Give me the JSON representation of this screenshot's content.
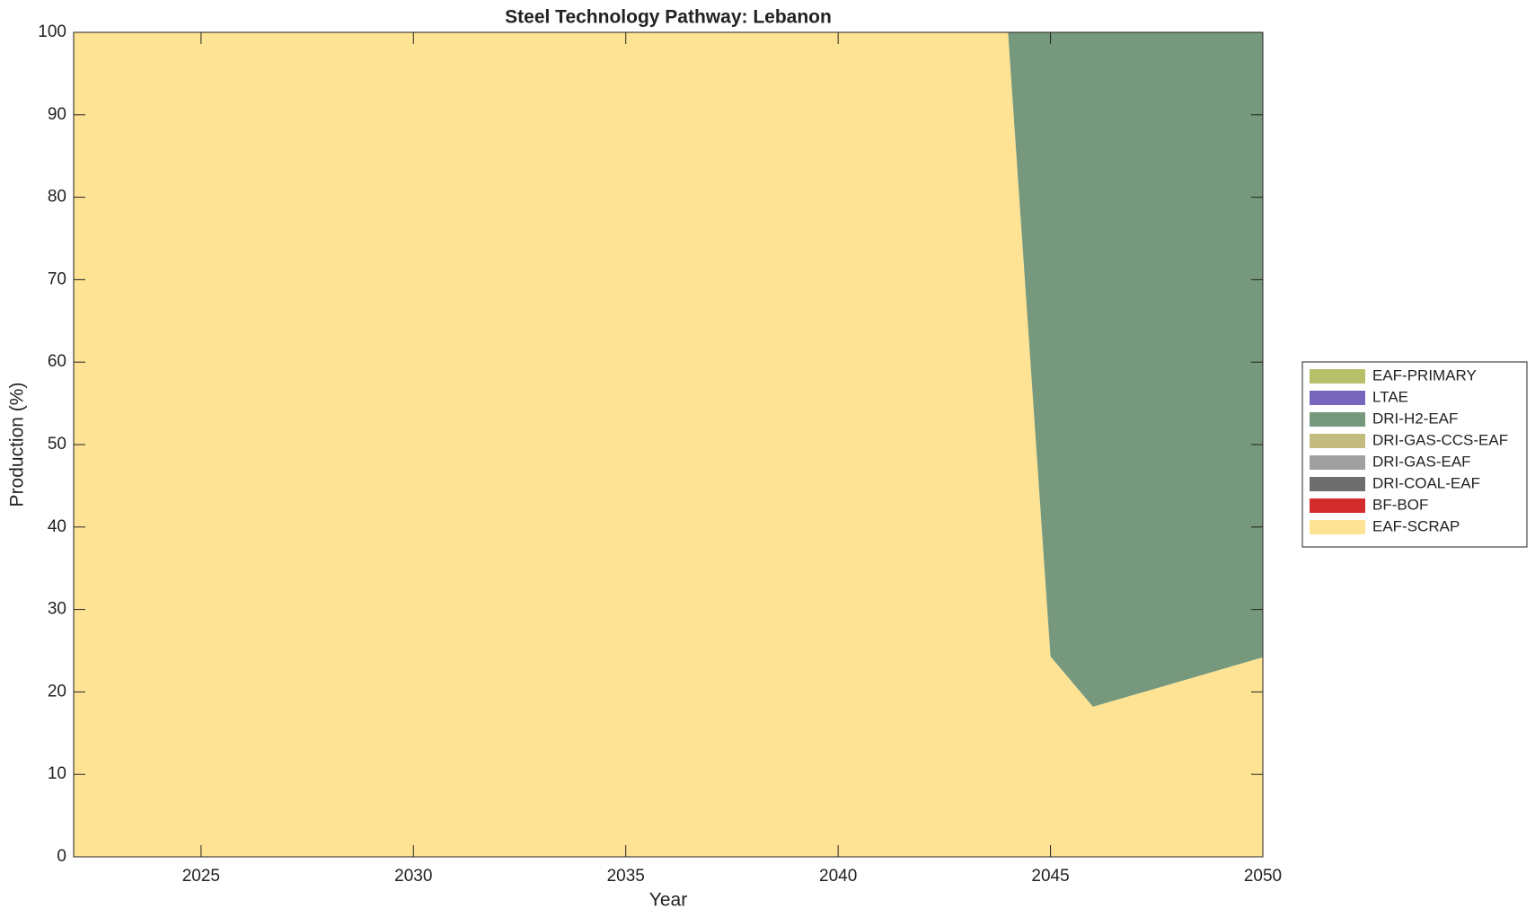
{
  "chart_data": {
    "type": "stacked-area",
    "title": "Steel Technology Pathway: Lebanon",
    "x_label": "Year",
    "y_label": "Production (%)",
    "x": [
      2022,
      2023,
      2024,
      2025,
      2026,
      2027,
      2028,
      2029,
      2030,
      2031,
      2032,
      2033,
      2034,
      2035,
      2036,
      2037,
      2038,
      2039,
      2040,
      2041,
      2042,
      2043,
      2044,
      2045,
      2046,
      2047,
      2048,
      2049,
      2050
    ],
    "series": [
      {
        "name": "EAF-SCRAP",
        "color": "#fee394",
        "values": [
          100,
          100,
          100,
          100,
          100,
          100,
          100,
          100,
          100,
          100,
          100,
          100,
          100,
          100,
          100,
          100,
          100,
          100,
          100,
          100,
          100,
          100,
          100,
          24.3,
          18.2,
          19.7,
          21.2,
          22.7,
          24.2
        ]
      },
      {
        "name": "BF-BOF",
        "color": "#d42c2c",
        "values": [
          0,
          0,
          0,
          0,
          0,
          0,
          0,
          0,
          0,
          0,
          0,
          0,
          0,
          0,
          0,
          0,
          0,
          0,
          0,
          0,
          0,
          0,
          0,
          0,
          0,
          0,
          0,
          0,
          0
        ]
      },
      {
        "name": "DRI-COAL-EAF",
        "color": "#6e6e6e",
        "values": [
          0,
          0,
          0,
          0,
          0,
          0,
          0,
          0,
          0,
          0,
          0,
          0,
          0,
          0,
          0,
          0,
          0,
          0,
          0,
          0,
          0,
          0,
          0,
          0,
          0,
          0,
          0,
          0,
          0
        ]
      },
      {
        "name": "DRI-GAS-EAF",
        "color": "#a0a0a0",
        "values": [
          0,
          0,
          0,
          0,
          0,
          0,
          0,
          0,
          0,
          0,
          0,
          0,
          0,
          0,
          0,
          0,
          0,
          0,
          0,
          0,
          0,
          0,
          0,
          0,
          0,
          0,
          0,
          0,
          0
        ]
      },
      {
        "name": "DRI-GAS-CCS-EAF",
        "color": "#c4bc7f",
        "values": [
          0,
          0,
          0,
          0,
          0,
          0,
          0,
          0,
          0,
          0,
          0,
          0,
          0,
          0,
          0,
          0,
          0,
          0,
          0,
          0,
          0,
          0,
          0,
          0,
          0,
          0,
          0,
          0,
          0
        ]
      },
      {
        "name": "DRI-H2-EAF",
        "color": "#76987c",
        "values": [
          0,
          0,
          0,
          0,
          0,
          0,
          0,
          0,
          0,
          0,
          0,
          0,
          0,
          0,
          0,
          0,
          0,
          0,
          0,
          0,
          0,
          0,
          0,
          75.7,
          81.8,
          80.3,
          78.8,
          77.3,
          75.8
        ]
      },
      {
        "name": "LTAE",
        "color": "#7766bb",
        "values": [
          0,
          0,
          0,
          0,
          0,
          0,
          0,
          0,
          0,
          0,
          0,
          0,
          0,
          0,
          0,
          0,
          0,
          0,
          0,
          0,
          0,
          0,
          0,
          0,
          0,
          0,
          0,
          0,
          0
        ]
      },
      {
        "name": "EAF-PRIMARY",
        "color": "#b8bf6a",
        "values": [
          0,
          0,
          0,
          0,
          0,
          0,
          0,
          0,
          0,
          0,
          0,
          0,
          0,
          0,
          0,
          0,
          0,
          0,
          0,
          0,
          0,
          0,
          0,
          0,
          0,
          0,
          0,
          0,
          0
        ]
      }
    ],
    "xlim": [
      2022,
      2050
    ],
    "xticks": [
      2025,
      2030,
      2035,
      2040,
      2045,
      2050
    ],
    "ylim": [
      0,
      100
    ],
    "yticks": [
      0,
      10,
      20,
      30,
      40,
      50,
      60,
      70,
      80,
      90,
      100
    ],
    "legend": "outside-right",
    "legend_reversed": true
  }
}
